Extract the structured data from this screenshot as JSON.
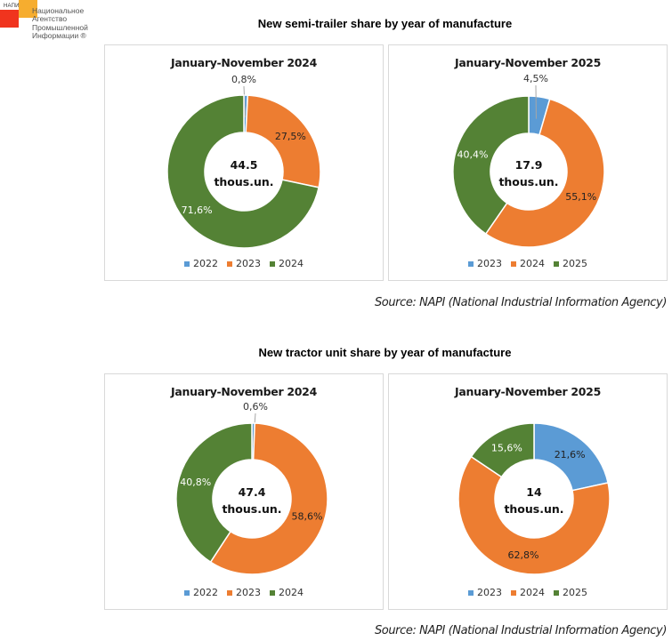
{
  "logo": {
    "abbr": "НАПИ",
    "name_lines": [
      "Национальное",
      "Агентство",
      "Промышленной",
      "Информации ®"
    ]
  },
  "colors": {
    "blue": "#5b9bd5",
    "orange": "#ed7d31",
    "green": "#548235",
    "border": "#d9d9d9"
  },
  "sections": [
    {
      "title": "New semi-trailer share by year of manufacture",
      "source": "Source: NAPI (National Industrial Information Agency)"
    },
    {
      "title": "New tractor unit share by year of manufacture",
      "source": "Source: NAPI (National Industrial Information Agency)"
    }
  ],
  "chart_data": [
    {
      "type": "pie",
      "subtype": "donut",
      "section": "New semi-trailer share by year of manufacture",
      "title": "January-November 2024",
      "center_value": "44.5",
      "center_unit": "thous.un.",
      "categories": [
        "2022",
        "2023",
        "2024"
      ],
      "values": [
        0.8,
        27.5,
        71.6
      ],
      "labels": [
        "0,8%",
        "27,5%",
        "71,6%"
      ],
      "legend": "bottom"
    },
    {
      "type": "pie",
      "subtype": "donut",
      "section": "New semi-trailer share by year of manufacture",
      "title": "January-November 2025",
      "center_value": "17.9",
      "center_unit": "thous.un.",
      "categories": [
        "2023",
        "2024",
        "2025"
      ],
      "values": [
        4.5,
        55.1,
        40.4
      ],
      "labels": [
        "4,5%",
        "55,1%",
        "40,4%"
      ],
      "legend": "bottom"
    },
    {
      "type": "pie",
      "subtype": "donut",
      "section": "New tractor unit share by year of manufacture",
      "title": "January-November 2024",
      "center_value": "47.4",
      "center_unit": "thous.un.",
      "categories": [
        "2022",
        "2023",
        "2024"
      ],
      "values": [
        0.6,
        58.6,
        40.8
      ],
      "labels": [
        "0,6%",
        "58,6%",
        "40,8%"
      ],
      "legend": "bottom"
    },
    {
      "type": "pie",
      "subtype": "donut",
      "section": "New tractor unit share by year of manufacture",
      "title": "January-November 2025",
      "center_value": "14",
      "center_unit": "thous.un.",
      "categories": [
        "2023",
        "2024",
        "2025"
      ],
      "values": [
        21.6,
        62.8,
        15.6
      ],
      "labels": [
        "21,6%",
        "62,8%",
        "15,6%"
      ],
      "legend": "bottom"
    }
  ]
}
